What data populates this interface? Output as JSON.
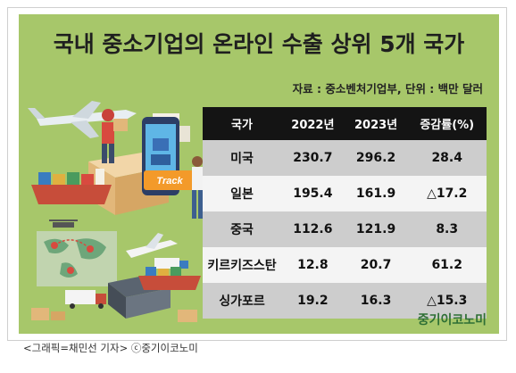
{
  "title": "국내 중소기업의 온라인 수출 상위 5개 국가",
  "source": "자료 : 중소벤처기업부, 단위 : 백만 달러",
  "brand": "중기이코노미",
  "caption": "<그래픽=채민선 기자>  ⓒ중기이코노미",
  "illustration": {
    "truck_label": "Track"
  },
  "colors": {
    "panel": "#a7c76a",
    "header": "#141414",
    "row_odd": "#cdcdcd",
    "row_even": "#f4f4f4",
    "brand": "#2e6f35"
  },
  "chart_data": {
    "type": "table",
    "columns": [
      "국가",
      "2022년",
      "2023년",
      "증감률(%)"
    ],
    "rows": [
      {
        "country": "미국",
        "y2022": "230.7",
        "y2023": "296.2",
        "change": "28.4"
      },
      {
        "country": "일본",
        "y2022": "195.4",
        "y2023": "161.9",
        "change": "△17.2"
      },
      {
        "country": "중국",
        "y2022": "112.6",
        "y2023": "121.9",
        "change": "8.3"
      },
      {
        "country": "키르키즈스탄",
        "y2022": "12.8",
        "y2023": "20.7",
        "change": "61.2"
      },
      {
        "country": "싱가포르",
        "y2022": "19.2",
        "y2023": "16.3",
        "change": "△15.3"
      }
    ]
  }
}
